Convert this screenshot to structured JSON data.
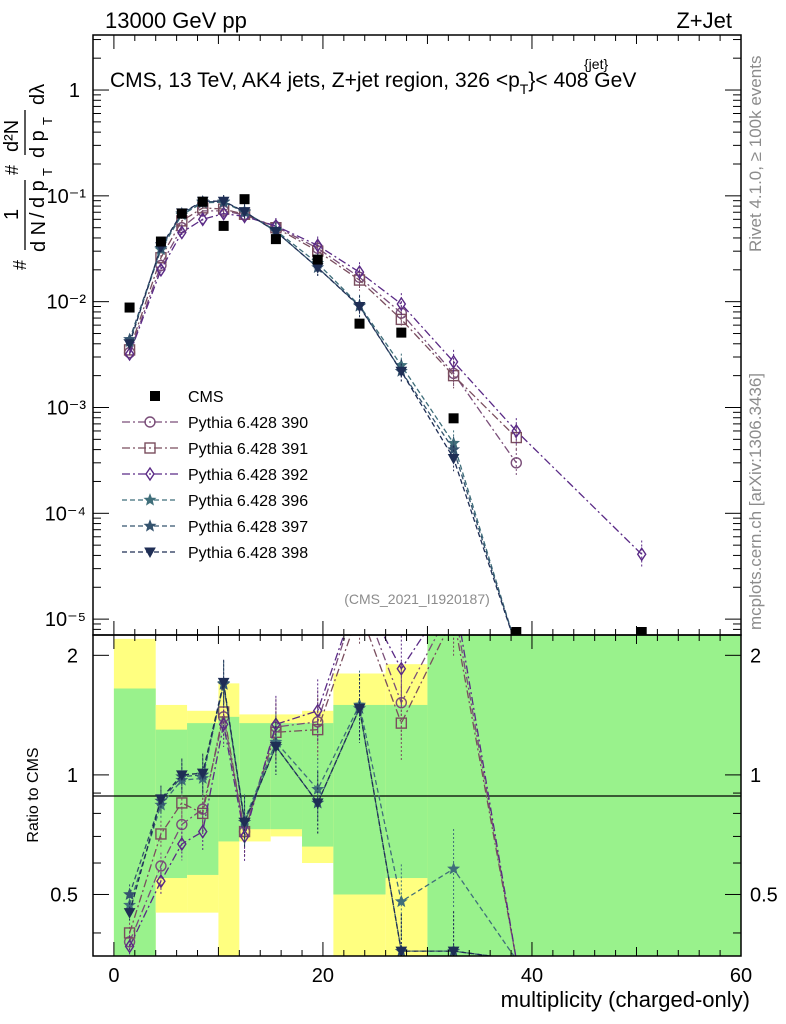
{
  "header": {
    "left": "13000 GeV pp",
    "right": "Z+Jet"
  },
  "side": {
    "rivet": "Rivet 4.1.0, ≥ 100k events",
    "mcplots": "mcplots.cern.ch [arXiv:1306.3436]"
  },
  "chart_data": {
    "type": "scatter",
    "title": "CMS, 13 TeV, AK4 jets, Z+jet region, 326 <p",
    "title_sup": "{jet}",
    "title_sub": "T",
    "title_tail": "}< 408 GeV",
    "analysis_id": "(CMS_2021_I1920187)",
    "ylabel_parts": [
      "#",
      "1",
      "d N",
      "/",
      "d p",
      "T",
      "#",
      "d p",
      "T",
      "dλ",
      "d²N"
    ],
    "xlabel": "multiplicity (charged-only)",
    "ratio_ylabel": "Ratio to CMS",
    "xlim": [
      -2,
      60
    ],
    "ylim_log": [
      -5.15,
      0.52
    ],
    "ratio_ylim": [
      0.35,
      2.25
    ],
    "x_ticks": [
      "0",
      "20",
      "40",
      "60"
    ],
    "y_ticks": [
      "10⁻⁵",
      "10⁻⁴",
      "10⁻³",
      "10⁻²",
      "10⁻¹",
      "1"
    ],
    "ratio_ticks": [
      "0.5",
      "1",
      "2"
    ],
    "legend_position": "left-middle",
    "data": {
      "name": "CMS",
      "x": [
        1.5,
        4.5,
        6.5,
        8.5,
        10.5,
        12.5,
        15.5,
        19.5,
        23.5,
        27.5,
        32.5,
        38.5,
        50.5
      ],
      "y": [
        0.0088,
        0.037,
        0.068,
        0.088,
        0.052,
        0.093,
        0.039,
        0.025,
        0.0062,
        0.0051,
        0.00079,
        6.5e-06,
        6.5e-06
      ]
    },
    "bands": [
      {
        "x0": 0,
        "x1": 4,
        "y1_lo": 0.3,
        "y1_hi": 1.65,
        "y2_lo": 0.3,
        "y2_hi": 2.2
      },
      {
        "x0": 4,
        "x1": 7,
        "y1_lo": 0.55,
        "y1_hi": 1.3,
        "y2_lo": 0.45,
        "y2_hi": 1.5
      },
      {
        "x0": 7,
        "x1": 10,
        "y1_lo": 0.56,
        "y1_hi": 1.35,
        "y2_lo": 0.45,
        "y2_hi": 1.45
      },
      {
        "x0": 10,
        "x1": 12,
        "y1_lo": 0.68,
        "y1_hi": 1.4,
        "y2_lo": 0.3,
        "y2_hi": 1.7
      },
      {
        "x0": 12,
        "x1": 15,
        "y1_lo": 0.73,
        "y1_hi": 1.35,
        "y2_lo": 0.68,
        "y2_hi": 1.42
      },
      {
        "x0": 15,
        "x1": 18,
        "y1_lo": 0.73,
        "y1_hi": 1.35,
        "y2_lo": 0.7,
        "y2_hi": 1.42
      },
      {
        "x0": 18,
        "x1": 21,
        "y1_lo": 0.66,
        "y1_hi": 1.35,
        "y2_lo": 0.6,
        "y2_hi": 1.45
      },
      {
        "x0": 21,
        "x1": 26,
        "y1_lo": 0.5,
        "y1_hi": 1.5,
        "y2_lo": 0.3,
        "y2_hi": 1.8
      },
      {
        "x0": 26,
        "x1": 30,
        "y1_lo": 0.55,
        "y1_hi": 1.5,
        "y2_lo": 0.3,
        "y2_hi": 1.9
      },
      {
        "x0": 30,
        "x1": 60,
        "y1_lo": 0.3,
        "y1_hi": 2.5,
        "y2_lo": 0.3,
        "y2_hi": 2.5
      }
    ],
    "series": [
      {
        "name": "Pythia 6.428 390",
        "color": "#7a4e79",
        "marker": "circle",
        "dash": "8 3 2 3",
        "x": [
          1.5,
          4.5,
          6.5,
          8.5,
          10.5,
          12.5,
          15.5,
          19.5,
          23.5,
          27.5,
          32.5,
          38.5
        ],
        "y": [
          0.0033,
          0.022,
          0.05,
          0.072,
          0.072,
          0.066,
          0.051,
          0.032,
          0.017,
          0.0078,
          0.0021,
          0.0003
        ],
        "ratio": [
          0.38,
          0.59,
          0.75,
          0.82,
          1.4,
          0.72,
          1.32,
          1.36,
          2.9,
          1.52,
          2.7,
          0.05
        ]
      },
      {
        "name": "Pythia 6.428 391",
        "color": "#7a4e5e",
        "marker": "square",
        "dash": "8 3 2 3",
        "x": [
          1.5,
          4.5,
          6.5,
          8.5,
          10.5,
          12.5,
          15.5,
          19.5,
          23.5,
          27.5,
          32.5,
          38.5
        ],
        "y": [
          0.0035,
          0.026,
          0.058,
          0.077,
          0.075,
          0.067,
          0.05,
          0.03,
          0.016,
          0.0068,
          0.002,
          0.00052
        ],
        "ratio": [
          0.4,
          0.71,
          0.85,
          0.8,
          1.44,
          0.72,
          1.28,
          1.3,
          2.6,
          1.35,
          2.5,
          0.05
        ]
      },
      {
        "name": "Pythia 6.428 392",
        "color": "#5a2a86",
        "marker": "diamond",
        "dash": "8 3 2 3",
        "x": [
          1.5,
          4.5,
          6.5,
          8.5,
          10.5,
          12.5,
          15.5,
          19.5,
          23.5,
          27.5,
          32.5,
          38.5,
          50.5
        ],
        "y": [
          0.0032,
          0.02,
          0.045,
          0.06,
          0.068,
          0.064,
          0.052,
          0.034,
          0.019,
          0.0095,
          0.0027,
          0.0006,
          4.1e-05
        ],
        "ratio": [
          0.37,
          0.54,
          0.67,
          0.72,
          1.34,
          0.7,
          1.34,
          1.45,
          3.0,
          1.85,
          3.2,
          0.05,
          0.05
        ]
      },
      {
        "name": "Pythia 6.428 396",
        "color": "#3f6e7a",
        "marker": "star",
        "dash": "5 3",
        "x": [
          1.5,
          4.5,
          6.5,
          8.5,
          10.5,
          12.5,
          15.5,
          19.5,
          23.5,
          27.5,
          32.5,
          38.5
        ],
        "y": [
          0.0042,
          0.031,
          0.066,
          0.086,
          0.087,
          0.07,
          0.047,
          0.023,
          0.0092,
          0.0025,
          0.00046,
          5.5e-06
        ],
        "ratio": [
          0.47,
          0.84,
          0.97,
          0.98,
          1.7,
          0.77,
          1.21,
          0.92,
          1.5,
          0.48,
          0.58,
          0.05
        ]
      },
      {
        "name": "Pythia 6.428 397",
        "color": "#34536e",
        "marker": "star",
        "dash": "5 3",
        "x": [
          1.5,
          4.5,
          6.5,
          8.5,
          10.5,
          12.5,
          15.5,
          19.5,
          23.5,
          27.5,
          32.5,
          38.5
        ],
        "y": [
          0.0044,
          0.032,
          0.068,
          0.088,
          0.088,
          0.071,
          0.046,
          0.021,
          0.0091,
          0.0022,
          0.0004,
          5.5e-06
        ],
        "ratio": [
          0.5,
          0.86,
          0.99,
          1.0,
          1.69,
          0.76,
          1.18,
          0.85,
          1.47,
          0.36,
          0.36,
          0.05
        ]
      },
      {
        "name": "Pythia 6.428 398",
        "color": "#1f2e55",
        "marker": "triangle-down",
        "dash": "5 3",
        "x": [
          1.5,
          4.5,
          6.5,
          8.5,
          10.5,
          12.5,
          15.5,
          19.5,
          23.5,
          27.5,
          32.5,
          38.5
        ],
        "y": [
          0.004,
          0.033,
          0.069,
          0.089,
          0.089,
          0.071,
          0.046,
          0.021,
          0.009,
          0.0022,
          0.00033,
          5.5e-06
        ],
        "ratio": [
          0.45,
          0.87,
          1.0,
          1.01,
          1.71,
          0.76,
          1.18,
          0.85,
          1.47,
          0.36,
          0.36,
          0.05
        ]
      }
    ]
  }
}
